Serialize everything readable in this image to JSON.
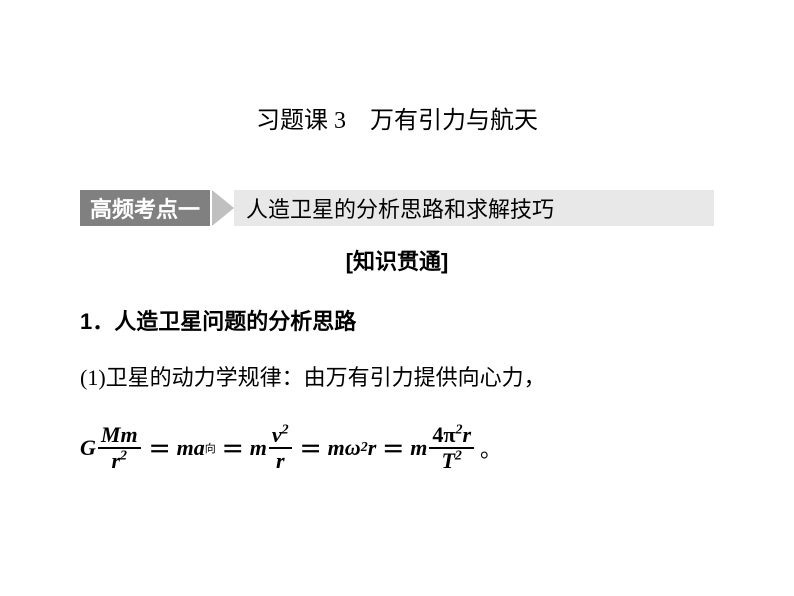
{
  "title": "习题课 3　万有引力与航天",
  "section": {
    "badge": "高频考点一",
    "title": "人造卫星的分析思路和求解技巧"
  },
  "knowledge_label": "[知识贯通]",
  "heading1": "1．人造卫星问题的分析思路",
  "body1": "(1)卫星的动力学规律：由万有引力提供向心力，",
  "formula": {
    "G": "G",
    "Mm": "Mm",
    "r2": "r",
    "sup2": "2",
    "eq": "＝",
    "m": "m",
    "a": "a",
    "xiang": "向",
    "v": "v",
    "r": "r",
    "omega": "ω",
    "four": "4",
    "pi": "π",
    "T": "T",
    "period": "。"
  },
  "colors": {
    "background": "#ffffff",
    "text": "#000000",
    "badge_bg": "#808080",
    "badge_text": "#ffffff",
    "arrow": "#c0c0c0",
    "bar_bg": "#e8e8e8"
  },
  "fonts": {
    "title_size": 24,
    "section_size": 22,
    "body_size": 22,
    "formula_size": 22
  }
}
